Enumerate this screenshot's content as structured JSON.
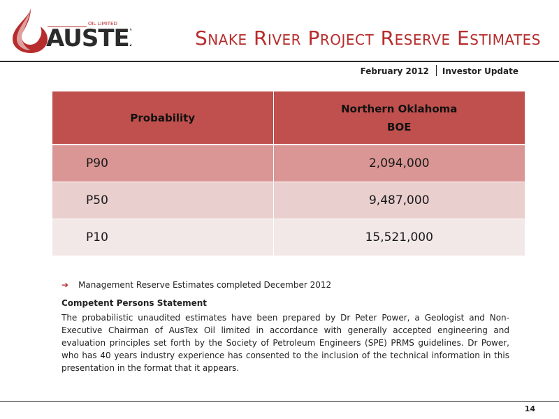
{
  "logo": {
    "company_name": "AUSTEX",
    "tagline": "OIL LIMITED",
    "colors": {
      "drop": "#b72c2c",
      "text": "#2b2b2b"
    }
  },
  "header": {
    "title": "Snake River Project  Reserve Estimates",
    "date": "February 2012",
    "label": "Investor Update"
  },
  "table": {
    "headers": {
      "probability": "Probability",
      "region_line1": "Northern Oklahoma",
      "region_line2": "BOE"
    },
    "rows": [
      {
        "probability": "P90",
        "boe": "2,094,000"
      },
      {
        "probability": "P50",
        "boe": "9,487,000"
      },
      {
        "probability": "P10",
        "boe": "15,521,000"
      }
    ],
    "colors": {
      "header": "#c0504d",
      "row1": "#d99694",
      "row2": "#e9cfce",
      "row3": "#f2e8e7"
    }
  },
  "notes": {
    "bullet": "Management Reserve Estimates completed December 2012",
    "cps_heading": "Competent Persons Statement",
    "cps_body": "The probabilistic unaudited estimates have been prepared by Dr Peter Power, a Geologist and Non-Executive Chairman of AusTex Oil limited in accordance with generally accepted engineering and evaluation principles set forth by the Society of Petroleum Engineers (SPE) PRMS guidelines.  Dr Power, who has 40 years industry experience has consented to the inclusion of the technical information in this presentation in the format that it appears."
  },
  "footer": {
    "page_number": "14"
  }
}
